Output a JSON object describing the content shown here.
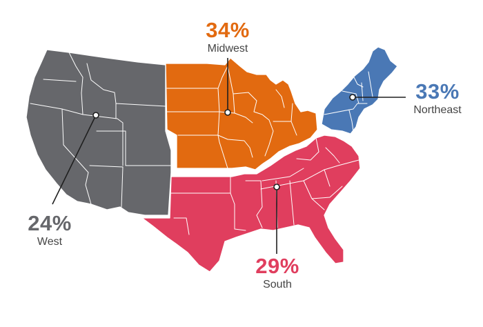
{
  "regions": {
    "west": {
      "percent": "24%",
      "name": "West",
      "color": "#66676b"
    },
    "midwest": {
      "percent": "34%",
      "name": "Midwest",
      "color": "#e26a10"
    },
    "northeast": {
      "percent": "33%",
      "name": "Northeast",
      "color": "#4a78b5"
    },
    "south": {
      "percent": "29%",
      "name": "South",
      "color": "#e03e5e"
    }
  },
  "colors": {
    "label_text": "#444444",
    "border": "#ffffff",
    "leader": "#1f1f1f"
  }
}
